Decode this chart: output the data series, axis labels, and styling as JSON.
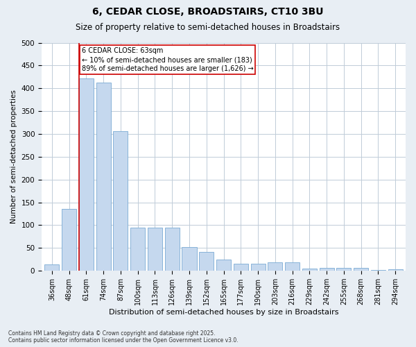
{
  "title1": "6, CEDAR CLOSE, BROADSTAIRS, CT10 3BU",
  "title2": "Size of property relative to semi-detached houses in Broadstairs",
  "xlabel": "Distribution of semi-detached houses by size in Broadstairs",
  "ylabel": "Number of semi-detached properties",
  "categories": [
    "36sqm",
    "48sqm",
    "61sqm",
    "74sqm",
    "87sqm",
    "100sqm",
    "113sqm",
    "126sqm",
    "139sqm",
    "152sqm",
    "165sqm",
    "177sqm",
    "190sqm",
    "203sqm",
    "216sqm",
    "229sqm",
    "242sqm",
    "255sqm",
    "268sqm",
    "281sqm",
    "294sqm"
  ],
  "values": [
    14,
    135,
    422,
    413,
    306,
    95,
    95,
    95,
    52,
    42,
    25,
    15,
    15,
    18,
    18,
    5,
    6,
    6,
    7,
    2,
    4
  ],
  "bar_color": "#c5d8ee",
  "bar_edge_color": "#7aaad4",
  "property_bin_index": 2,
  "property_label": "6 CEDAR CLOSE: 63sqm",
  "pct_smaller": 10,
  "count_smaller": 183,
  "pct_larger": 89,
  "count_larger": 1626,
  "vline_color": "#cc0000",
  "annotation_box_color": "#cc0000",
  "ylim": [
    0,
    500
  ],
  "yticks": [
    0,
    50,
    100,
    150,
    200,
    250,
    300,
    350,
    400,
    450,
    500
  ],
  "footnote": "Contains HM Land Registry data © Crown copyright and database right 2025.\nContains public sector information licensed under the Open Government Licence v3.0.",
  "bg_color": "#e8eef4",
  "plot_bg_color": "#ffffff",
  "grid_color": "#c0ccd8"
}
